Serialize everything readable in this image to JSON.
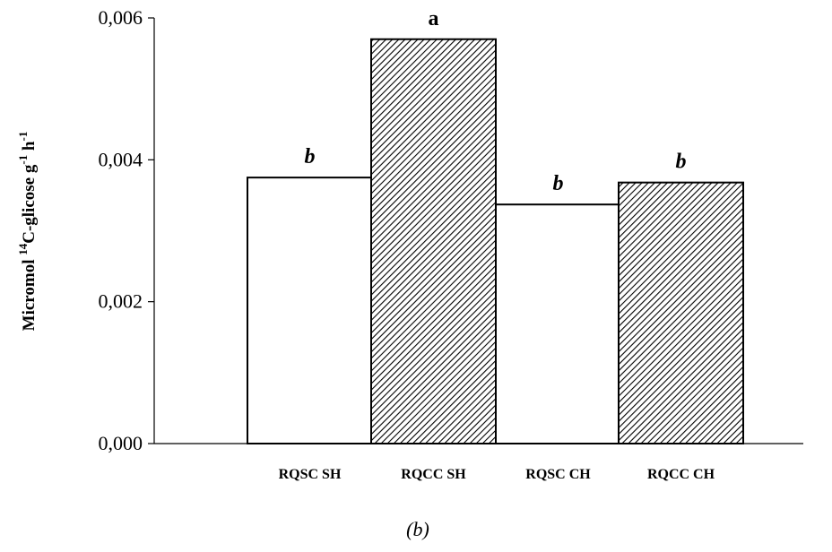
{
  "chart_data": {
    "type": "bar",
    "categories": [
      "RQSC SH",
      "RQCC SH",
      "RQSC CH",
      "RQCC CH"
    ],
    "values": [
      0.00375,
      0.0057,
      0.00337,
      0.00368
    ],
    "significance": [
      "b",
      "a",
      "b",
      "b"
    ],
    "significance_italic": [
      true,
      false,
      true,
      true
    ],
    "bar_fills": [
      "plain",
      "hatched",
      "plain",
      "hatched"
    ],
    "ylim": [
      0,
      0.006
    ],
    "yticks": [
      0,
      0.002,
      0.004,
      0.006
    ],
    "ytick_labels": [
      "0,000",
      "0,002",
      "0,004",
      "0,006"
    ],
    "ylabel": {
      "prefix": "Micromol ",
      "sup1": "14",
      "middle": "C-glicose g",
      "sup2": "-1",
      "middle2": " h",
      "sup3": "-1"
    },
    "xlabel": "",
    "panel_label": "(b)",
    "grid": false,
    "colors": {
      "bar_edge": "#000000",
      "bar_plain": "#ffffff",
      "hatch": "#000000"
    }
  }
}
